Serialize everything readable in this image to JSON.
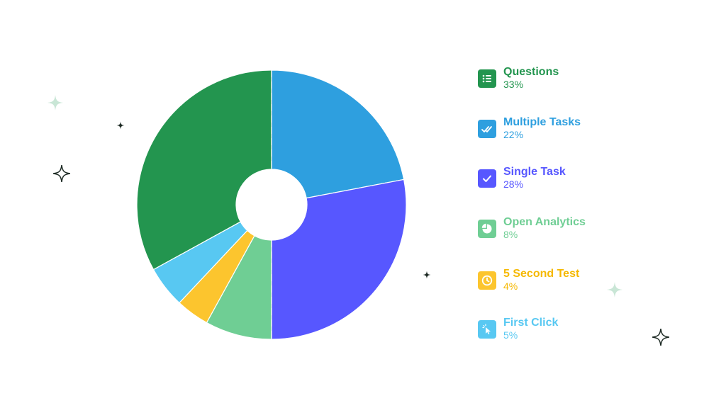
{
  "chart_data": {
    "type": "pie",
    "donut": true,
    "legend_position": "right",
    "slices": [
      {
        "label": "Questions",
        "value": 33,
        "value_text": "33%",
        "color": "#23954f",
        "text_color": "#23954f",
        "icon": "list-icon"
      },
      {
        "label": "Multiple Tasks",
        "value": 22,
        "value_text": "22%",
        "color": "#2e9fdf",
        "text_color": "#2e9fdf",
        "icon": "double-check-icon"
      },
      {
        "label": "Single Task",
        "value": 28,
        "value_text": "28%",
        "color": "#5757ff",
        "text_color": "#5757ff",
        "icon": "check-icon"
      },
      {
        "label": "Open Analytics",
        "value": 8,
        "value_text": "8%",
        "color": "#6fce94",
        "text_color": "#6fce94",
        "icon": "pie-chart-icon"
      },
      {
        "label": "5 Second Test",
        "value": 4,
        "value_text": "4%",
        "color": "#fcc52e",
        "text_color": "#f5b800",
        "icon": "clock-icon"
      },
      {
        "label": "First Click",
        "value": 5,
        "value_text": "5%",
        "color": "#58c8f2",
        "text_color": "#58c8f2",
        "icon": "cursor-click-icon"
      }
    ]
  },
  "decorations": {
    "sparkle_light_color": "#c9e6d6",
    "sparkle_dark_color": "#1e2b25"
  }
}
